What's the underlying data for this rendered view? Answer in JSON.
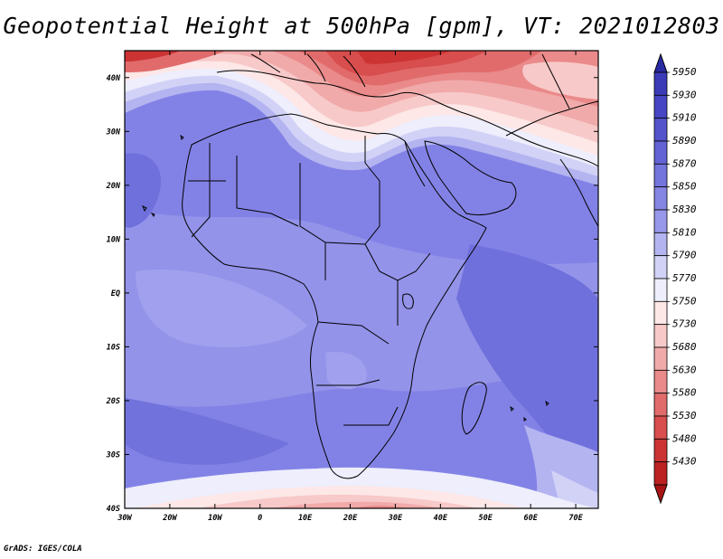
{
  "title": "Geopotential Height at 500hPa [gpm], VT: 2021012803",
  "credit": "GrADS: IGES/COLA",
  "map": {
    "lon_labels": [
      "30W",
      "20W",
      "10W",
      "0",
      "10E",
      "20E",
      "30E",
      "40E",
      "50E",
      "60E",
      "70E"
    ],
    "lat_labels": [
      "40N",
      "30N",
      "20N",
      "10N",
      "EQ",
      "10S",
      "20S",
      "30S",
      "40S"
    ],
    "lon_range": [
      -30,
      75
    ],
    "lat_range": [
      -40,
      45
    ]
  },
  "colorbar": {
    "labels": [
      "5950",
      "5930",
      "5910",
      "5890",
      "5870",
      "5850",
      "5830",
      "5810",
      "5790",
      "5770",
      "5750",
      "5730",
      "5680",
      "5630",
      "5580",
      "5530",
      "5480",
      "5430"
    ],
    "colors": [
      "#3b3bb8",
      "#4646c4",
      "#5353cc",
      "#6363d6",
      "#7474dd",
      "#8585e3",
      "#9898ea",
      "#b4b4f1",
      "#d2d2f7",
      "#eeeefc",
      "#fde7e7",
      "#f8c9c9",
      "#f1aaaa",
      "#ea8a8a",
      "#e16b6b",
      "#d84d4d",
      "#cc3434",
      "#bc2222"
    ]
  }
}
